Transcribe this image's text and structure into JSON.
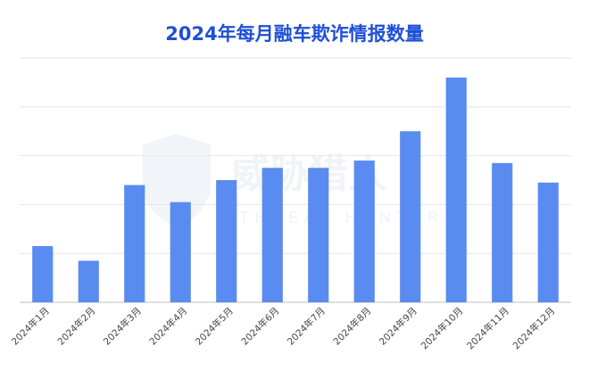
{
  "chart_data": {
    "type": "bar",
    "title": "2024年每月融车欺诈情报数量",
    "categories": [
      "2024年1月",
      "2024年2月",
      "2024年3月",
      "2024年4月",
      "2024年5月",
      "2024年6月",
      "2024年7月",
      "2024年8月",
      "2024年9月",
      "2024年10月",
      "2024年11月",
      "2024年12月"
    ],
    "values": [
      23,
      17,
      48,
      41,
      50,
      55,
      55,
      58,
      70,
      92,
      57,
      49
    ],
    "ylim": [
      0,
      100
    ],
    "grid": true,
    "bar_color": "#5a8bf0",
    "grid_color": "#e6e6e6",
    "title_color": "#1f4fd8",
    "watermark": {
      "text": "威胁猎人",
      "subtext": "THREAT HUNTER"
    }
  }
}
